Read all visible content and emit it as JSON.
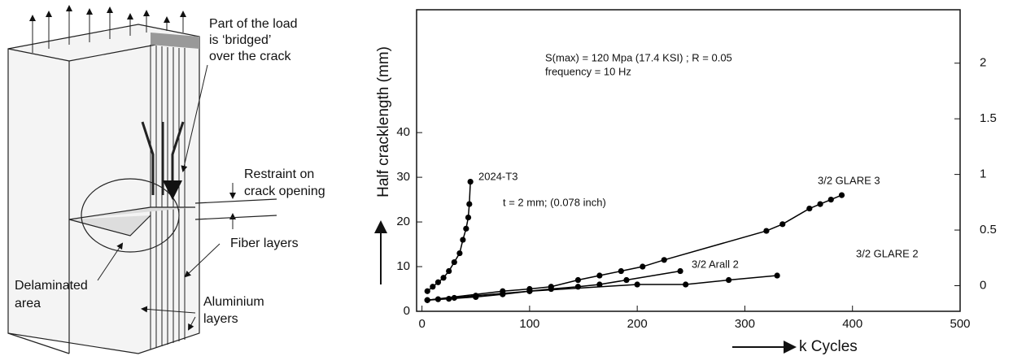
{
  "diagram": {
    "labels": [
      "Part of the load",
      "is ‘bridged’",
      "over the crack",
      "Restraint on",
      "crack opening",
      "Fiber layers",
      "Delaminated",
      "area",
      "Aluminium",
      "layers"
    ]
  },
  "chart_data": {
    "type": "line",
    "x_label": "k Cycles",
    "y_label": "Half cracklength (mm)",
    "annotations": [
      "S(max) = 120 Mpa (17.4 KSI) ; R = 0.05",
      "frequency = 10 Hz",
      "t = 2 mm; (0.078 inch)"
    ],
    "xlim": [
      -5,
      500
    ],
    "xticks": [
      0,
      100,
      200,
      300,
      400,
      500
    ],
    "ylim": [
      0,
      67.5
    ],
    "yticks": [
      0,
      10,
      20,
      30,
      40
    ],
    "y2lim": [
      -0.23,
      2.48
    ],
    "y2ticks": [
      0,
      0.5,
      1,
      1.5,
      2
    ],
    "series": [
      {
        "name": "2024-T3",
        "color": "#000000",
        "x": [
          5,
          10,
          15,
          20,
          25,
          30,
          35,
          38,
          41,
          43,
          44,
          45
        ],
        "values": [
          4.5,
          5.5,
          6.5,
          7.5,
          9,
          11,
          13,
          16,
          18.5,
          21,
          24,
          29
        ]
      },
      {
        "name": "3/2 GLARE 3",
        "color": "#000000",
        "x": [
          5,
          75,
          100,
          120,
          145,
          165,
          185,
          205,
          225,
          320,
          335,
          360,
          370,
          380,
          390
        ],
        "values": [
          2.5,
          4.5,
          5,
          5.5,
          7,
          8,
          9,
          10,
          11.5,
          18,
          19.5,
          23,
          24,
          25,
          26
        ]
      },
      {
        "name": "3/2 Arall 2",
        "color": "#000000",
        "x": [
          5,
          15,
          30,
          50,
          75,
          100,
          120,
          145,
          165,
          190,
          240
        ],
        "values": [
          2.5,
          2.7,
          3,
          3.5,
          4,
          4.5,
          5,
          5.5,
          6,
          7,
          9
        ]
      },
      {
        "name": "3/2 GLARE 2",
        "color": "#000000",
        "x": [
          5,
          25,
          50,
          75,
          100,
          200,
          245,
          285,
          330
        ],
        "values": [
          2.5,
          2.8,
          3.2,
          3.8,
          4.5,
          6,
          6,
          7,
          8
        ]
      }
    ]
  }
}
